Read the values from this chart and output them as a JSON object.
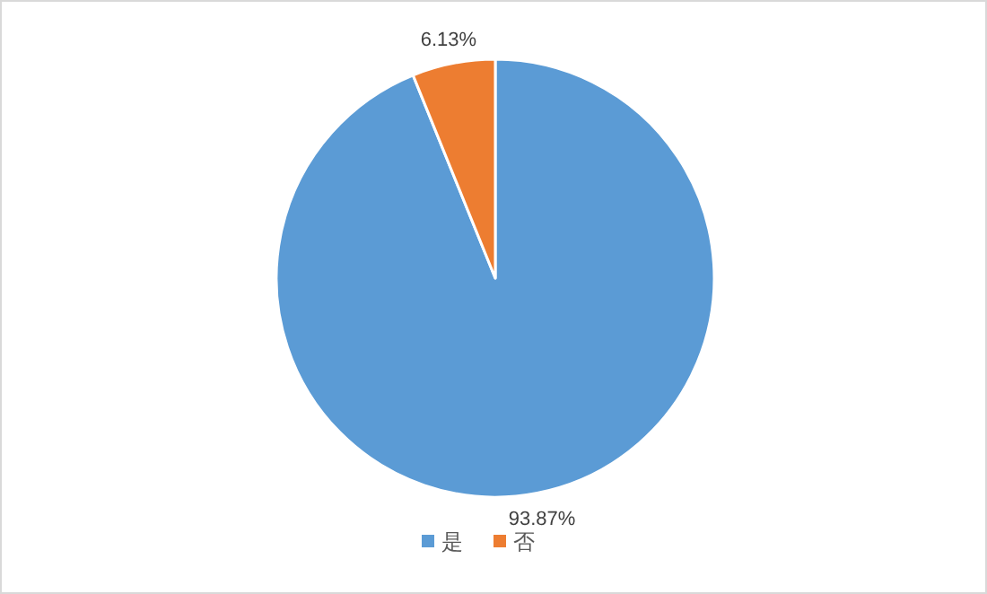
{
  "chart_data": {
    "type": "pie",
    "categories": [
      "是",
      "否"
    ],
    "values": [
      93.87,
      6.13
    ],
    "colors": [
      "#5b9bd5",
      "#ed7d31"
    ],
    "value_labels": [
      "93.87%",
      "6.13%"
    ],
    "legend": "bottom"
  }
}
